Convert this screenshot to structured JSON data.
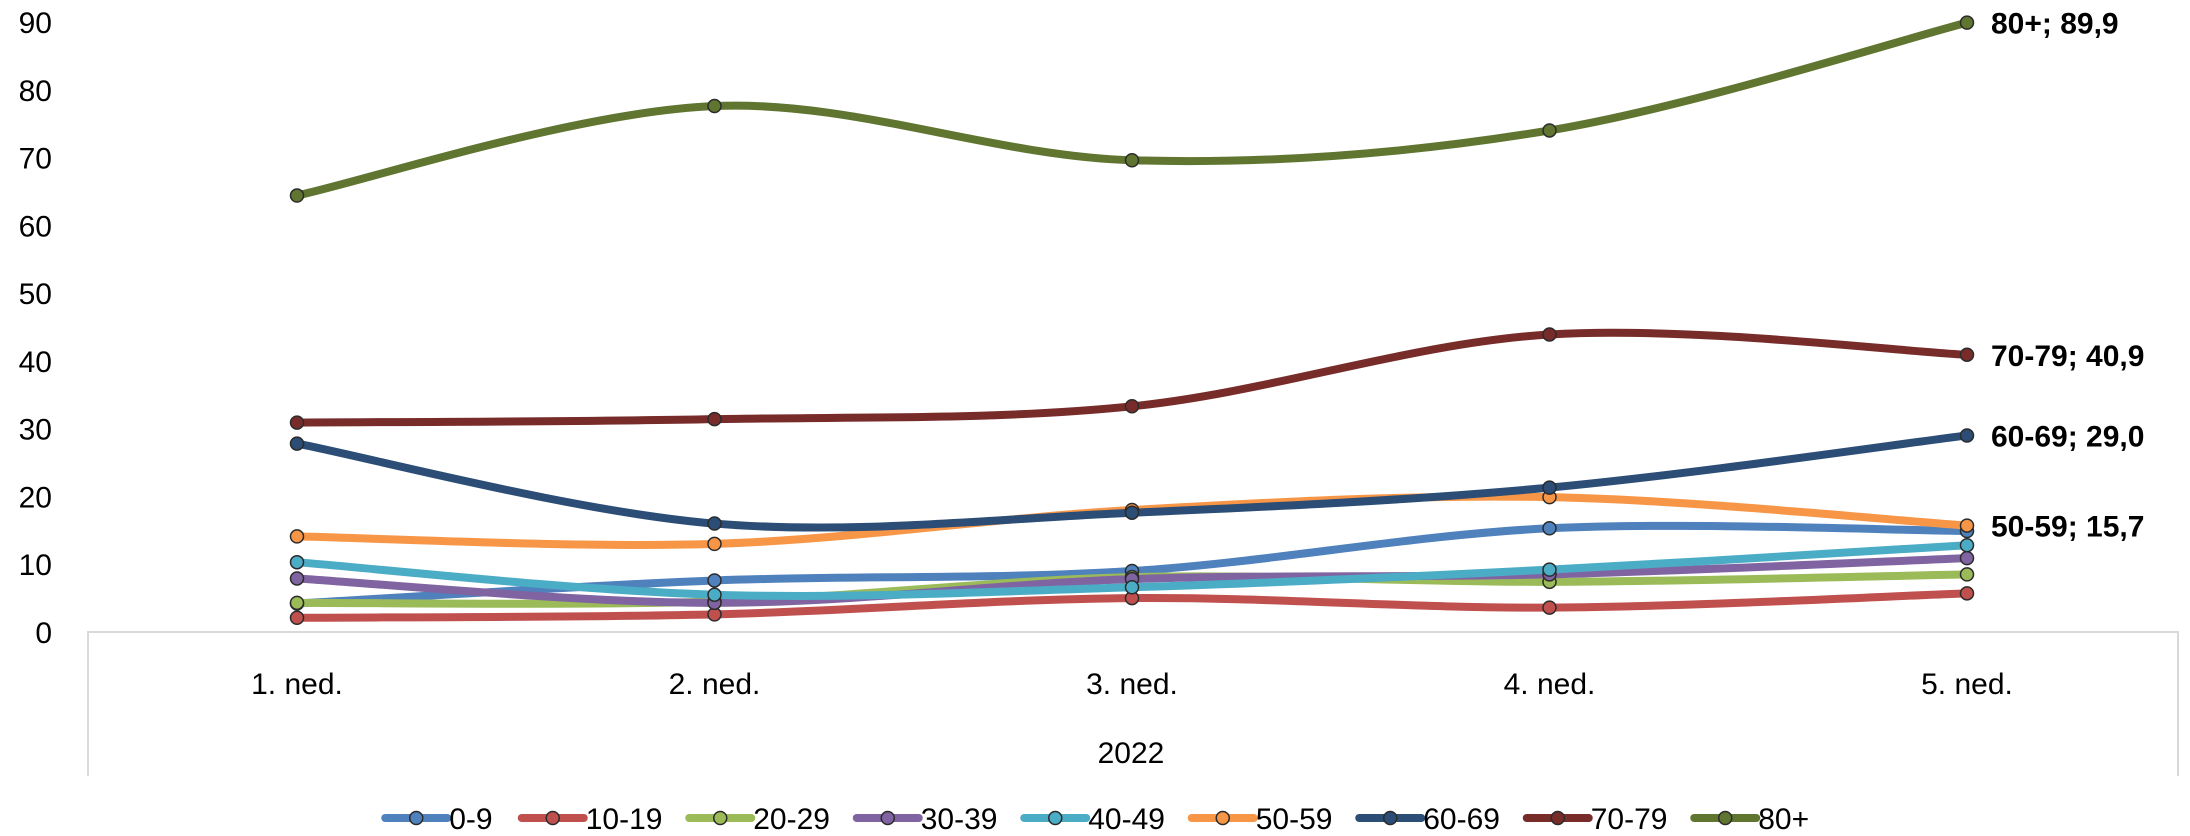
{
  "chart_data": {
    "type": "line",
    "categories": [
      "1. ned.",
      "2. ned.",
      "3. ned.",
      "4. ned.",
      "5. ned."
    ],
    "group_label": "2022",
    "ylim": [
      0,
      90
    ],
    "yticks": [
      0,
      10,
      20,
      30,
      40,
      50,
      60,
      70,
      80,
      90
    ],
    "grid": false,
    "smooth": true,
    "legend_position": "bottom",
    "series": [
      {
        "name": "0-9",
        "color": "#4f81bd",
        "values": [
          4.2,
          7.6,
          9.0,
          15.3,
          14.9
        ]
      },
      {
        "name": "10-19",
        "color": "#c0504d",
        "values": [
          2.1,
          2.6,
          5.0,
          3.6,
          5.7
        ]
      },
      {
        "name": "20-29",
        "color": "#9bbb59",
        "values": [
          4.3,
          4.5,
          8.1,
          7.4,
          8.5
        ]
      },
      {
        "name": "30-39",
        "color": "#8064a2",
        "values": [
          7.9,
          4.3,
          7.8,
          8.5,
          10.9
        ]
      },
      {
        "name": "40-49",
        "color": "#4bacc6",
        "values": [
          10.3,
          5.5,
          6.6,
          9.2,
          12.8
        ]
      },
      {
        "name": "50-59",
        "color": "#f79646",
        "values": [
          14.1,
          13.0,
          18.0,
          19.9,
          15.7
        ]
      },
      {
        "name": "60-69",
        "color": "#2c4d75",
        "values": [
          27.8,
          16.0,
          17.6,
          21.3,
          29.0
        ]
      },
      {
        "name": "70-79",
        "color": "#772c2a",
        "values": [
          30.9,
          31.4,
          33.3,
          43.9,
          40.9
        ]
      },
      {
        "name": "80+",
        "color": "#5f7530",
        "values": [
          64.4,
          77.6,
          69.6,
          74.0,
          89.9
        ]
      }
    ],
    "annotations": [
      {
        "series": "80+",
        "text": "80+; 89,9"
      },
      {
        "series": "70-79",
        "text": "70-79; 40,9"
      },
      {
        "series": "60-69",
        "text": "60-69; 29,0"
      },
      {
        "series": "50-59",
        "text": "50-59; 15,7"
      }
    ]
  }
}
